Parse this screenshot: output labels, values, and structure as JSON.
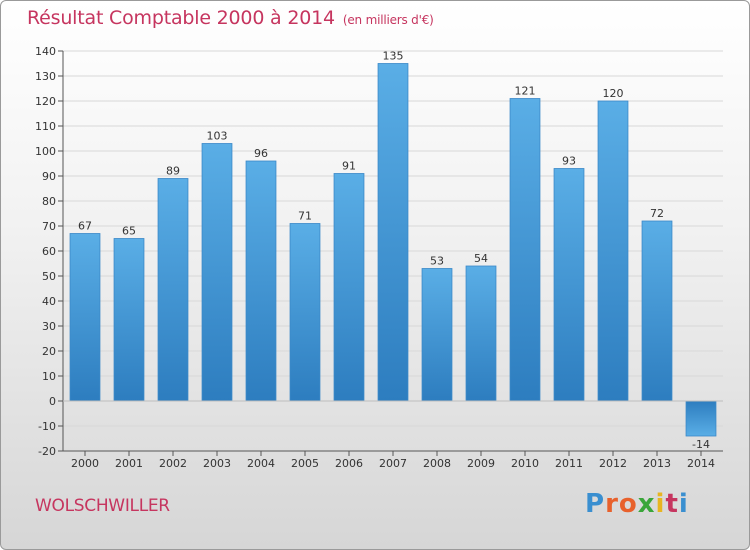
{
  "chart_data": {
    "type": "bar",
    "title": "Résultat Comptable 2000 à 2014",
    "subtitle": "(en milliers d'€)",
    "categories": [
      "2000",
      "2001",
      "2002",
      "2003",
      "2004",
      "2005",
      "2006",
      "2007",
      "2008",
      "2009",
      "2010",
      "2011",
      "2012",
      "2013",
      "2014"
    ],
    "values": [
      67,
      65,
      89,
      103,
      96,
      71,
      91,
      135,
      53,
      54,
      121,
      93,
      120,
      72,
      -14
    ],
    "data_labels": [
      "67",
      "65",
      "89",
      "103",
      "96",
      "71",
      "91",
      "135",
      "53",
      "54",
      "121",
      "93",
      "120",
      "72",
      "-14"
    ],
    "ylim": [
      -20,
      140
    ],
    "yticks": [
      -20,
      -10,
      0,
      10,
      20,
      30,
      40,
      50,
      60,
      70,
      80,
      90,
      100,
      110,
      120,
      130,
      140
    ],
    "xlabel": "",
    "ylabel": "",
    "grid": true,
    "bar_color": "#5aaee6",
    "bar_color_dark": "#2d7dbf"
  },
  "commune": "WOLSCHWILLER",
  "brand": {
    "letters": [
      {
        "ch": "P",
        "color": "#3a8fd0"
      },
      {
        "ch": "r",
        "color": "#e8612c"
      },
      {
        "ch": "o",
        "color": "#e8612c"
      },
      {
        "ch": "x",
        "color": "#3aa63a"
      },
      {
        "ch": "i",
        "color": "#e8b520"
      },
      {
        "ch": "t",
        "color": "#c6355f"
      },
      {
        "ch": "i",
        "color": "#3a8fd0"
      }
    ]
  },
  "colors": {
    "title": "#c6355f",
    "axis": "#555555",
    "grid": "#d8d8d8"
  }
}
